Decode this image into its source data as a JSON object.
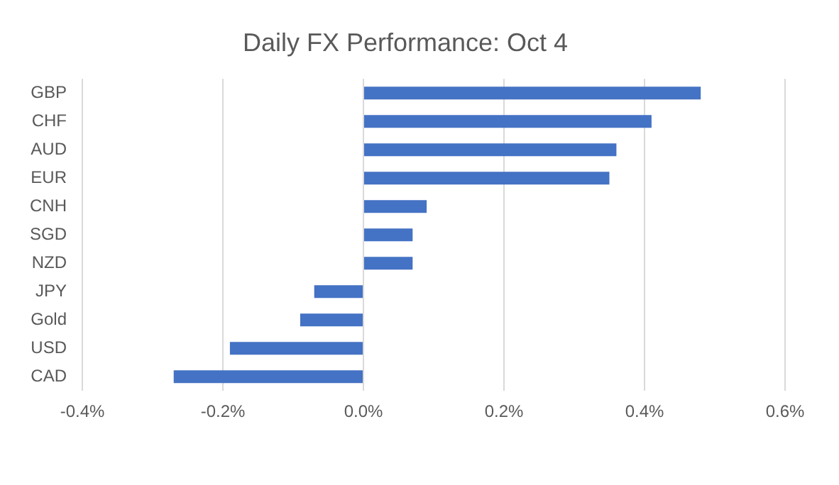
{
  "chart_data": {
    "type": "bar",
    "orientation": "horizontal",
    "title": "Daily FX Performance: Oct 4",
    "categories": [
      "GBP",
      "CHF",
      "AUD",
      "EUR",
      "CNH",
      "SGD",
      "NZD",
      "JPY",
      "Gold",
      "USD",
      "CAD"
    ],
    "values": [
      0.48,
      0.41,
      0.36,
      0.35,
      0.09,
      0.07,
      0.07,
      -0.07,
      -0.09,
      -0.19,
      -0.27
    ],
    "color": "#4472c4",
    "xlim": [
      -0.4,
      0.6
    ],
    "xticks": [
      {
        "value": -0.4,
        "label": "-0.4%"
      },
      {
        "value": -0.2,
        "label": "-0.2%"
      },
      {
        "value": 0,
        "label": "0.0%"
      },
      {
        "value": 0.2,
        "label": "0.2%"
      },
      {
        "value": 0.4,
        "label": "0.4%"
      },
      {
        "value": 0.6,
        "label": "0.6%"
      }
    ],
    "grid": "x"
  }
}
